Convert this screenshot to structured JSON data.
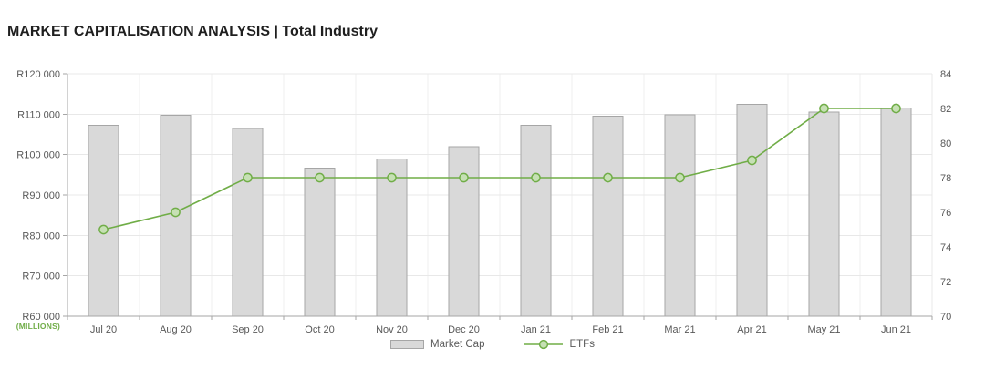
{
  "page": {
    "title": "MARKET CAPITALISATION ANALYSIS | Total Industry"
  },
  "chart_data": {
    "type": "combo-bar-line",
    "categories": [
      "Jul 20",
      "Aug 20",
      "Sep 20",
      "Oct 20",
      "Nov 20",
      "Dec 20",
      "Jan 21",
      "Feb 21",
      "Mar 21",
      "Apr 21",
      "May 21",
      "Jun 21"
    ],
    "series": [
      {
        "name": "Market Cap",
        "type": "bar",
        "axis": "left",
        "values": [
          107200,
          109700,
          106500,
          96600,
          98900,
          102000,
          107200,
          109500,
          109900,
          112500,
          110500,
          111500
        ]
      },
      {
        "name": "ETFs",
        "type": "line",
        "axis": "right",
        "values": [
          75,
          76,
          78,
          78,
          78,
          78,
          78,
          78,
          78,
          79,
          82,
          82
        ]
      }
    ],
    "left_axis": {
      "unit_label": "(MILLIONS)",
      "tick_labels": [
        "R120 000",
        "R110 000",
        "R100 000",
        "R90 000",
        "R80 000",
        "R70 000",
        "R60 000"
      ],
      "min": 60000,
      "max": 120000
    },
    "right_axis": {
      "tick_labels": [
        "84",
        "82",
        "80",
        "78",
        "76",
        "74",
        "72",
        "70"
      ],
      "min": 70,
      "max": 84
    },
    "legend": {
      "position": "bottom-center"
    },
    "grid": true,
    "colors": {
      "bar_fill": "#d9d9d9",
      "bar_border": "#a6a6a6",
      "line": "#70ad47",
      "marker_fill": "#c6e0b4",
      "marker_border": "#70ad47",
      "h_gridline": "#e8e8e8",
      "v_gridline": "#efefef",
      "axis_line": "#a6a6a6",
      "axis_text": "#595959",
      "unit_label": "#70ad47",
      "title_text": "#1f1f1f"
    }
  }
}
